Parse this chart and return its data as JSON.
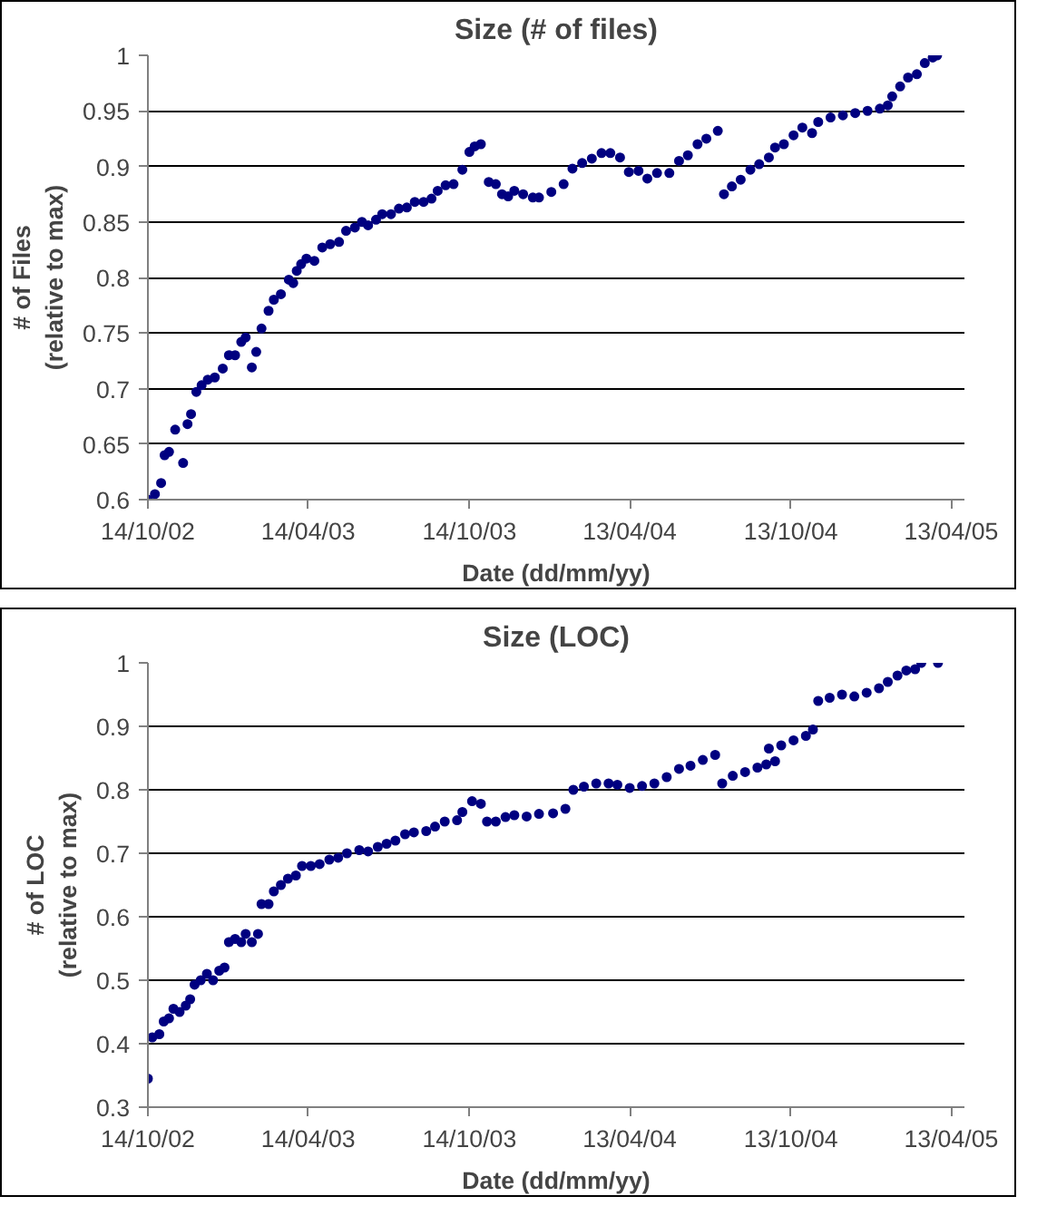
{
  "chart_data": [
    {
      "type": "scatter",
      "title": "Size (# of files)",
      "xlabel": "Date (dd/mm/yy)",
      "ylabel": "# of Files\n(relative to max)",
      "marker": "circle",
      "grid": "y",
      "xlim": [
        "2002-10-14",
        "2005-04-28"
      ],
      "ylim": [
        0.6,
        1
      ],
      "xticks": [
        {
          "value": "2002-10-14",
          "label": "14/10/02"
        },
        {
          "value": "2003-04-14",
          "label": "14/04/03"
        },
        {
          "value": "2003-10-14",
          "label": "14/10/03"
        },
        {
          "value": "2004-04-13",
          "label": "13/04/04"
        },
        {
          "value": "2004-10-13",
          "label": "13/10/04"
        },
        {
          "value": "2005-04-13",
          "label": "13/04/05"
        }
      ],
      "yticks": [
        0.6,
        0.65,
        0.7,
        0.75,
        0.8,
        0.85,
        0.9,
        0.95,
        1
      ],
      "series": [
        {
          "color": "#000080",
          "x": [
            "2002-10-14",
            "2002-10-22",
            "2002-10-29",
            "2002-11-02",
            "2002-11-07",
            "2002-11-14",
            "2002-11-23",
            "2002-11-28",
            "2002-12-02",
            "2002-12-08",
            "2002-12-14",
            "2002-12-21",
            "2002-12-29",
            "2003-01-07",
            "2003-01-14",
            "2003-01-21",
            "2003-01-28",
            "2003-02-02",
            "2003-02-09",
            "2003-02-14",
            "2003-02-20",
            "2003-02-28",
            "2003-03-06",
            "2003-03-14",
            "2003-03-23",
            "2003-03-28",
            "2003-04-01",
            "2003-04-06",
            "2003-04-12",
            "2003-04-21",
            "2003-04-30",
            "2003-05-09",
            "2003-05-19",
            "2003-05-27",
            "2003-06-06",
            "2003-06-14",
            "2003-06-21",
            "2003-06-30",
            "2003-07-07",
            "2003-07-17",
            "2003-07-26",
            "2003-08-04",
            "2003-08-13",
            "2003-08-23",
            "2003-09-01",
            "2003-09-08",
            "2003-09-17",
            "2003-09-26",
            "2003-10-06",
            "2003-10-14",
            "2003-10-20",
            "2003-10-27",
            "2003-11-05",
            "2003-11-13",
            "2003-11-20",
            "2003-11-27",
            "2003-12-04",
            "2003-12-14",
            "2003-12-25",
            "2004-01-01",
            "2004-01-15",
            "2004-01-29",
            "2004-02-08",
            "2004-02-19",
            "2004-03-01",
            "2004-03-12",
            "2004-03-22",
            "2004-04-02",
            "2004-04-12",
            "2004-04-23",
            "2004-05-03",
            "2004-05-14",
            "2004-05-28",
            "2004-06-08",
            "2004-06-18",
            "2004-06-29",
            "2004-07-09",
            "2004-07-22",
            "2004-07-29",
            "2004-08-07",
            "2004-08-17",
            "2004-08-28",
            "2004-09-07",
            "2004-09-18",
            "2004-09-25",
            "2004-10-05",
            "2004-10-16",
            "2004-10-26",
            "2004-11-06",
            "2004-11-13",
            "2004-11-27",
            "2004-12-11",
            "2004-12-25",
            "2005-01-08",
            "2005-01-22",
            "2005-01-31",
            "2005-02-05",
            "2005-02-14",
            "2005-02-23",
            "2005-03-05",
            "2005-03-14",
            "2005-03-23",
            "2005-03-28"
          ],
          "values": [
            0.6,
            0.605,
            0.615,
            0.64,
            0.643,
            0.663,
            0.633,
            0.668,
            0.677,
            0.697,
            0.703,
            0.708,
            0.71,
            0.718,
            0.73,
            0.73,
            0.742,
            0.746,
            0.719,
            0.733,
            0.754,
            0.77,
            0.78,
            0.785,
            0.798,
            0.795,
            0.806,
            0.812,
            0.817,
            0.815,
            0.827,
            0.83,
            0.832,
            0.842,
            0.845,
            0.85,
            0.847,
            0.852,
            0.857,
            0.857,
            0.862,
            0.863,
            0.868,
            0.868,
            0.871,
            0.878,
            0.883,
            0.884,
            0.897,
            0.913,
            0.918,
            0.92,
            0.886,
            0.884,
            0.875,
            0.873,
            0.878,
            0.875,
            0.872,
            0.872,
            0.877,
            0.884,
            0.898,
            0.903,
            0.907,
            0.912,
            0.912,
            0.908,
            0.895,
            0.896,
            0.889,
            0.894,
            0.894,
            0.905,
            0.91,
            0.92,
            0.925,
            0.932,
            0.875,
            0.882,
            0.888,
            0.897,
            0.902,
            0.908,
            0.917,
            0.92,
            0.928,
            0.935,
            0.93,
            0.94,
            0.944,
            0.946,
            0.948,
            0.95,
            0.952,
            0.955,
            0.963,
            0.972,
            0.98,
            0.983,
            0.993,
            0.998,
            1.0
          ]
        }
      ]
    },
    {
      "type": "scatter",
      "title": "Size (LOC)",
      "xlabel": "Date (dd/mm/yy)",
      "ylabel": "# of LOC\n(relative to max)",
      "marker": "circle",
      "grid": "y",
      "xlim": [
        "2002-10-14",
        "2005-04-28"
      ],
      "ylim": [
        0.3,
        1
      ],
      "xticks": [
        {
          "value": "2002-10-14",
          "label": "14/10/02"
        },
        {
          "value": "2003-04-14",
          "label": "14/04/03"
        },
        {
          "value": "2003-10-14",
          "label": "14/10/03"
        },
        {
          "value": "2004-04-13",
          "label": "13/04/04"
        },
        {
          "value": "2004-10-13",
          "label": "13/10/04"
        },
        {
          "value": "2005-04-13",
          "label": "13/04/05"
        }
      ],
      "yticks": [
        0.3,
        0.4,
        0.5,
        0.6,
        0.7,
        0.8,
        0.9,
        1
      ],
      "series": [
        {
          "color": "#000080",
          "x": [
            "2002-10-14",
            "2002-10-19",
            "2002-10-27",
            "2002-11-01",
            "2002-11-07",
            "2002-11-12",
            "2002-11-19",
            "2002-11-26",
            "2002-12-01",
            "2002-12-06",
            "2002-12-13",
            "2002-12-20",
            "2002-12-27",
            "2003-01-03",
            "2003-01-09",
            "2003-01-14",
            "2003-01-21",
            "2003-01-28",
            "2003-02-02",
            "2003-02-09",
            "2003-02-16",
            "2003-02-20",
            "2003-02-28",
            "2003-03-06",
            "2003-03-14",
            "2003-03-22",
            "2003-03-31",
            "2003-04-07",
            "2003-04-17",
            "2003-04-27",
            "2003-05-08",
            "2003-05-18",
            "2003-05-28",
            "2003-06-11",
            "2003-06-21",
            "2003-07-02",
            "2003-07-12",
            "2003-07-22",
            "2003-08-02",
            "2003-08-12",
            "2003-08-26",
            "2003-09-05",
            "2003-09-16",
            "2003-09-30",
            "2003-10-06",
            "2003-10-17",
            "2003-10-27",
            "2003-11-03",
            "2003-11-13",
            "2003-11-24",
            "2003-12-04",
            "2003-12-18",
            "2004-01-01",
            "2004-01-17",
            "2004-01-31",
            "2004-02-09",
            "2004-02-21",
            "2004-03-06",
            "2004-03-20",
            "2004-03-30",
            "2004-04-13",
            "2004-04-27",
            "2004-05-11",
            "2004-05-25",
            "2004-06-08",
            "2004-06-21",
            "2004-07-05",
            "2004-07-19",
            "2004-07-27",
            "2004-08-08",
            "2004-08-22",
            "2004-09-05",
            "2004-09-15",
            "2004-09-18",
            "2004-09-25",
            "2004-10-02",
            "2004-10-16",
            "2004-10-30",
            "2004-11-07",
            "2004-11-13",
            "2004-11-26",
            "2004-12-10",
            "2004-12-24",
            "2005-01-07",
            "2005-01-21",
            "2005-01-31",
            "2005-02-11",
            "2005-02-21",
            "2005-03-03",
            "2005-03-10",
            "2005-03-29"
          ],
          "values": [
            0.345,
            0.41,
            0.415,
            0.435,
            0.44,
            0.455,
            0.45,
            0.46,
            0.47,
            0.493,
            0.5,
            0.51,
            0.5,
            0.515,
            0.52,
            0.56,
            0.565,
            0.56,
            0.573,
            0.56,
            0.573,
            0.62,
            0.62,
            0.64,
            0.65,
            0.66,
            0.665,
            0.68,
            0.68,
            0.683,
            0.69,
            0.693,
            0.7,
            0.705,
            0.703,
            0.71,
            0.715,
            0.72,
            0.73,
            0.733,
            0.735,
            0.742,
            0.75,
            0.752,
            0.765,
            0.782,
            0.778,
            0.75,
            0.75,
            0.757,
            0.76,
            0.758,
            0.762,
            0.763,
            0.77,
            0.8,
            0.805,
            0.81,
            0.81,
            0.808,
            0.803,
            0.806,
            0.81,
            0.82,
            0.833,
            0.838,
            0.847,
            0.855,
            0.81,
            0.822,
            0.828,
            0.835,
            0.84,
            0.865,
            0.845,
            0.87,
            0.878,
            0.885,
            0.895,
            0.94,
            0.945,
            0.95,
            0.947,
            0.953,
            0.96,
            0.97,
            0.98,
            0.988,
            0.99,
            1.0,
            1.0
          ]
        }
      ]
    }
  ]
}
